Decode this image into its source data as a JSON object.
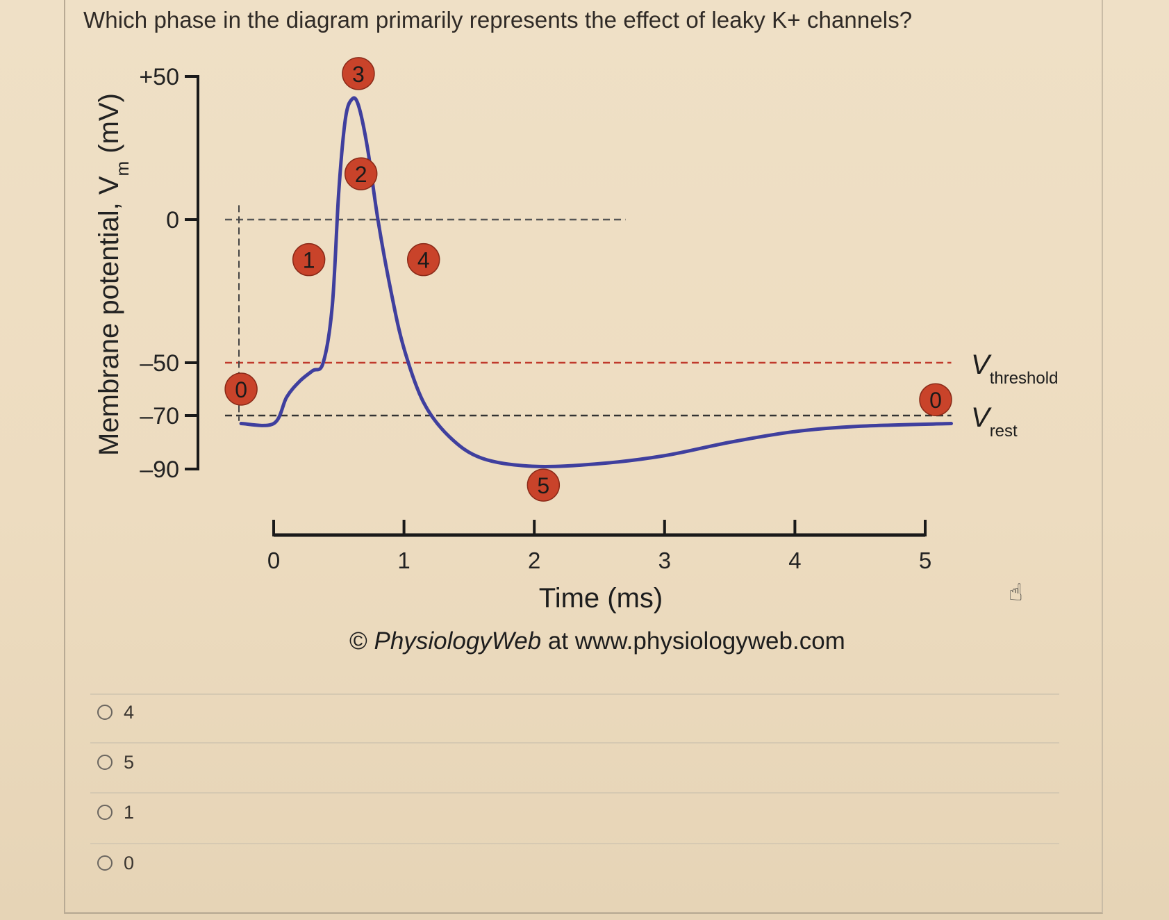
{
  "question": "Which phase in the diagram primarily represents the effect of leaky K+ channels?",
  "chart_data": {
    "type": "line",
    "y_axis": {
      "label_main": "Membrane potential, V",
      "label_sub": "m",
      "label_unit": " (mV)",
      "ticks": [
        "+50",
        "0",
        "–50",
        "–70",
        "–90"
      ],
      "tick_values": [
        50,
        0,
        -50,
        -70,
        -90
      ]
    },
    "x_axis": {
      "label": "Time (ms)",
      "ticks": [
        "0",
        "1",
        "2",
        "3",
        "4",
        "5"
      ],
      "tick_values": [
        0,
        1,
        2,
        3,
        4,
        5
      ]
    },
    "series": [
      {
        "color": "#3f3f9e",
        "points": [
          [
            -0.25,
            -73
          ],
          [
            0,
            -73
          ],
          [
            0.1,
            -63
          ],
          [
            0.2,
            -57
          ],
          [
            0.3,
            -53
          ],
          [
            0.38,
            -50
          ],
          [
            0.45,
            -30
          ],
          [
            0.5,
            10
          ],
          [
            0.55,
            35
          ],
          [
            0.6,
            42
          ],
          [
            0.65,
            40
          ],
          [
            0.72,
            25
          ],
          [
            0.8,
            0
          ],
          [
            0.9,
            -25
          ],
          [
            1.0,
            -45
          ],
          [
            1.15,
            -65
          ],
          [
            1.35,
            -78
          ],
          [
            1.6,
            -86
          ],
          [
            2.0,
            -89
          ],
          [
            2.5,
            -88
          ],
          [
            3.0,
            -85
          ],
          [
            3.5,
            -80
          ],
          [
            4.0,
            -76
          ],
          [
            4.5,
            -74
          ],
          [
            5.2,
            -73
          ]
        ]
      }
    ],
    "reference_lines": [
      {
        "y": 0,
        "color": "#555555",
        "x_end": 2.7
      },
      {
        "y": -50,
        "color": "#c0392b",
        "x_end": 5.2,
        "label": "V",
        "label_sub": "threshold"
      },
      {
        "y": -70,
        "color": "#333333",
        "x_end": 5.2,
        "label": "V",
        "label_sub": "rest"
      }
    ],
    "phase_markers": [
      {
        "label": "0",
        "x": -0.25,
        "y": -60
      },
      {
        "label": "1",
        "x": 0.27,
        "y": -14
      },
      {
        "label": "2",
        "x": 0.67,
        "y": 16
      },
      {
        "label": "3",
        "x": 0.65,
        "y": 51
      },
      {
        "label": "4",
        "x": 1.15,
        "y": -14
      },
      {
        "label": "5",
        "x": 2.07,
        "y": -96
      },
      {
        "label": "0",
        "x": 5.08,
        "y": -64
      }
    ],
    "credit_symbol": "©",
    "credit_brand": "PhysiologyWeb",
    "credit_rest": " at www.physiologyweb.com"
  },
  "options": [
    "4",
    "5",
    "1",
    "0"
  ],
  "colors": {
    "curve": "#3f3f9e",
    "marker_fill": "#c9432a",
    "threshold_line": "#c0392b"
  }
}
